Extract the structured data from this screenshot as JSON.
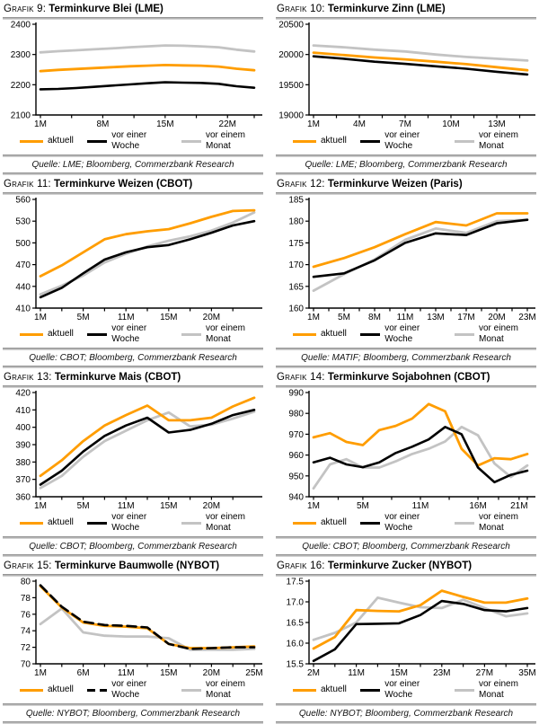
{
  "page": {
    "background": "#FFFFFF"
  },
  "colors": {
    "accent_orange": "#FF9D00",
    "series_black": "#000000",
    "series_gray": "#C3C3C3",
    "rule_gray": "#969696"
  },
  "chart_data": [
    {
      "type": "line",
      "label": "Grafik 9:",
      "title": "Terminkurve Blei (LME)",
      "source": "Quelle: LME; Bloomberg, Commerzbank Research",
      "legend_position": "below",
      "ylim": [
        2100,
        2400
      ],
      "yticks": [
        {
          "v": 2400,
          "label": "2400"
        },
        {
          "v": 2300,
          "label": "2300"
        },
        {
          "v": 2200,
          "label": "2200"
        },
        {
          "v": 2100,
          "label": "2100"
        }
      ],
      "xticks": [
        {
          "label": "1M",
          "i": 0
        },
        {
          "label": "8M",
          "i": 3.5
        },
        {
          "label": "15M",
          "i": 7
        },
        {
          "label": "22M",
          "i": 10.5
        }
      ],
      "series": [
        {
          "name": "aktuell",
          "color": "#FF9D00",
          "values": [
            2245,
            2249,
            2252,
            2255,
            2258,
            2261,
            2263,
            2265,
            2264,
            2263,
            2260,
            2253,
            2248
          ]
        },
        {
          "name": "vor einer Woche",
          "color": "#000000",
          "values": [
            2185,
            2186,
            2189,
            2193,
            2197,
            2201,
            2205,
            2208,
            2207,
            2206,
            2203,
            2195,
            2190
          ]
        },
        {
          "name": "vor einem Monat",
          "color": "#C3C3C3",
          "values": [
            2307,
            2311,
            2314,
            2317,
            2320,
            2324,
            2327,
            2330,
            2329,
            2327,
            2324,
            2316,
            2310
          ]
        }
      ]
    },
    {
      "type": "line",
      "label": "Grafik 10:",
      "title": "Terminkurve Zinn (LME)",
      "source": "Quelle: LME; Bloomberg, Commerzbank Research",
      "legend_position": "below",
      "ylim": [
        19000,
        20500
      ],
      "yticks": [
        {
          "v": 20500,
          "label": "20500"
        },
        {
          "v": 20000,
          "label": "20000"
        },
        {
          "v": 19500,
          "label": "19500"
        },
        {
          "v": 19000,
          "label": "19000"
        }
      ],
      "xticks": [
        {
          "label": "1M",
          "i": 0
        },
        {
          "label": "4M",
          "i": 1.5
        },
        {
          "label": "7M",
          "i": 3
        },
        {
          "label": "10M",
          "i": 4.5
        },
        {
          "label": "13M",
          "i": 6
        }
      ],
      "series": [
        {
          "name": "aktuell",
          "color": "#FF9D00",
          "values": [
            20030,
            19990,
            19950,
            19920,
            19880,
            19840,
            19790,
            19740
          ]
        },
        {
          "name": "vor einer Woche",
          "color": "#000000",
          "values": [
            19970,
            19930,
            19880,
            19845,
            19805,
            19765,
            19715,
            19670
          ]
        },
        {
          "name": "vor einem Monat",
          "color": "#C3C3C3",
          "values": [
            20150,
            20120,
            20080,
            20050,
            20000,
            19960,
            19930,
            19900
          ]
        }
      ]
    },
    {
      "type": "line",
      "label": "Grafik 11:",
      "title": "Terminkurve Weizen (CBOT)",
      "source": "Quelle: CBOT; Bloomberg, Commerzbank Research",
      "legend_position": "below",
      "ylim": [
        410,
        560
      ],
      "yticks": [
        {
          "v": 560,
          "label": "560"
        },
        {
          "v": 530,
          "label": "530"
        },
        {
          "v": 500,
          "label": "500"
        },
        {
          "v": 470,
          "label": "470"
        },
        {
          "v": 440,
          "label": "440"
        },
        {
          "v": 410,
          "label": "410"
        }
      ],
      "xticks": [
        {
          "label": "1M",
          "i": 0
        },
        {
          "label": "5M",
          "i": 2
        },
        {
          "label": "11M",
          "i": 4
        },
        {
          "label": "15M",
          "i": 6
        },
        {
          "label": "20M",
          "i": 8
        }
      ],
      "series": [
        {
          "name": "aktuell",
          "color": "#FF9D00",
          "values": [
            454,
            469,
            487,
            505,
            512,
            516,
            519,
            527,
            536,
            544,
            545
          ]
        },
        {
          "name": "vor einer Woche",
          "color": "#000000",
          "values": [
            425,
            438,
            458,
            477,
            487,
            494,
            497,
            505,
            514,
            524,
            530
          ]
        },
        {
          "name": "vor einem Monat",
          "color": "#C3C3C3",
          "values": [
            429,
            441,
            455,
            473,
            485,
            495,
            503,
            509,
            517,
            528,
            542
          ]
        }
      ]
    },
    {
      "type": "line",
      "label": "Grafik 12:",
      "title": "Terminkurve Weizen (Paris)",
      "source": "Quelle: MATIF; Bloomberg, Commerzbank Research",
      "legend_position": "below",
      "ylim": [
        160,
        185
      ],
      "yticks": [
        {
          "v": 185,
          "label": "185"
        },
        {
          "v": 180,
          "label": "180"
        },
        {
          "v": 175,
          "label": "175"
        },
        {
          "v": 170,
          "label": "170"
        },
        {
          "v": 165,
          "label": "165"
        },
        {
          "v": 160,
          "label": "160"
        }
      ],
      "xticks": [
        {
          "label": "1M",
          "i": 0
        },
        {
          "label": "5M",
          "i": 1
        },
        {
          "label": "8M",
          "i": 2
        },
        {
          "label": "11M",
          "i": 3
        },
        {
          "label": "13M",
          "i": 4
        },
        {
          "label": "17M",
          "i": 5
        },
        {
          "label": "20M",
          "i": 6
        },
        {
          "label": "23M",
          "i": 7
        }
      ],
      "series": [
        {
          "name": "aktuell",
          "color": "#FF9D00",
          "values": [
            169.5,
            171.5,
            174.0,
            177.0,
            179.8,
            179.0,
            181.8,
            181.8
          ]
        },
        {
          "name": "vor einer Woche",
          "color": "#000000",
          "values": [
            167.2,
            168.0,
            171.0,
            175.0,
            177.2,
            176.8,
            179.5,
            180.3
          ]
        },
        {
          "name": "vor einem Monat",
          "color": "#C3C3C3",
          "values": [
            164.0,
            167.8,
            171.2,
            175.7,
            178.3,
            177.3,
            180.0,
            180.3
          ]
        }
      ]
    },
    {
      "type": "line",
      "label": "Grafik 13:",
      "title": "Terminkurve Mais (CBOT)",
      "source": "Quelle: CBOT; Bloomberg, Commerzbank Research",
      "legend_position": "below",
      "ylim": [
        360,
        420
      ],
      "yticks": [
        {
          "v": 420,
          "label": "420"
        },
        {
          "v": 410,
          "label": "410"
        },
        {
          "v": 400,
          "label": "400"
        },
        {
          "v": 390,
          "label": "390"
        },
        {
          "v": 380,
          "label": "380"
        },
        {
          "v": 370,
          "label": "370"
        },
        {
          "v": 360,
          "label": "360"
        }
      ],
      "xticks": [
        {
          "label": "1M",
          "i": 0
        },
        {
          "label": "5M",
          "i": 2
        },
        {
          "label": "11M",
          "i": 4
        },
        {
          "label": "15M",
          "i": 6
        },
        {
          "label": "20M",
          "i": 8
        }
      ],
      "series": [
        {
          "name": "aktuell",
          "color": "#FF9D00",
          "values": [
            372,
            381,
            392,
            401,
            407,
            412.5,
            404,
            404,
            405.5,
            412,
            417
          ]
        },
        {
          "name": "vor einer Woche",
          "color": "#000000",
          "values": [
            367,
            375,
            386,
            395,
            401,
            405.5,
            397,
            398.5,
            402,
            407,
            410
          ]
        },
        {
          "name": "vor einem Monat",
          "color": "#C3C3C3",
          "values": [
            365,
            372,
            383,
            392,
            398,
            404,
            408.5,
            400.5,
            401.5,
            405,
            409
          ]
        }
      ]
    },
    {
      "type": "line",
      "label": "Grafik 14:",
      "title": "Terminkurve Sojabohnen (CBOT)",
      "source": "Quelle: CBOT; Bloomberg, Commerzbank Research",
      "legend_position": "below",
      "ylim": [
        940,
        990
      ],
      "yticks": [
        {
          "v": 990,
          "label": "990"
        },
        {
          "v": 980,
          "label": "980"
        },
        {
          "v": 970,
          "label": "970"
        },
        {
          "v": 960,
          "label": "960"
        },
        {
          "v": 950,
          "label": "950"
        },
        {
          "v": 940,
          "label": "940"
        }
      ],
      "xticks": [
        {
          "label": "1M",
          "i": 0
        },
        {
          "label": "5M",
          "i": 3
        },
        {
          "label": "11M",
          "i": 6.5
        },
        {
          "label": "16M",
          "i": 10
        },
        {
          "label": "21M",
          "i": 12.5
        }
      ],
      "series": [
        {
          "name": "aktuell",
          "color": "#FF9D00",
          "values": [
            968.5,
            970.5,
            966.3,
            964.8,
            972,
            974,
            977.5,
            984.5,
            981,
            963,
            955,
            958.5,
            958,
            960.5
          ]
        },
        {
          "name": "vor einer Woche",
          "color": "#000000",
          "values": [
            956.5,
            958.7,
            955.5,
            954.2,
            956.5,
            961,
            964,
            967.5,
            973.5,
            970,
            954,
            947,
            950.5,
            952.5
          ]
        },
        {
          "name": "vor einem Monat",
          "color": "#C3C3C3",
          "values": [
            944,
            955.5,
            958,
            954,
            954,
            957,
            960.5,
            963,
            966.5,
            973.5,
            969.5,
            956,
            949.5,
            955
          ]
        }
      ]
    },
    {
      "type": "line",
      "label": "Grafik 15:",
      "title": "Terminkurve Baumwolle (NYBOT)",
      "source": "Quelle: NYBOT; Bloomberg, Commerzbank Research",
      "legend_position": "below",
      "ylim": [
        70,
        80
      ],
      "yticks": [
        {
          "v": 80,
          "label": "80"
        },
        {
          "v": 78,
          "label": "78"
        },
        {
          "v": 76,
          "label": "76"
        },
        {
          "v": 74,
          "label": "74"
        },
        {
          "v": 72,
          "label": "72"
        },
        {
          "v": 70,
          "label": "70"
        }
      ],
      "xticks": [
        {
          "label": "1M",
          "i": 0
        },
        {
          "label": "6M",
          "i": 2
        },
        {
          "label": "11M",
          "i": 4
        },
        {
          "label": "15M",
          "i": 6
        },
        {
          "label": "20M",
          "i": 8
        },
        {
          "label": "25M",
          "i": 10
        }
      ],
      "series": [
        {
          "name": "aktuell",
          "color": "#FF9D00",
          "values": [
            79.4,
            76.8,
            75.0,
            74.6,
            74.5,
            74.3,
            72.4,
            71.9,
            71.9,
            72.0,
            72.1
          ]
        },
        {
          "name": "vor einer Woche",
          "color": "#000000",
          "dash": true,
          "values": [
            79.5,
            76.9,
            75.1,
            74.7,
            74.6,
            74.4,
            72.4,
            71.8,
            71.9,
            72.0,
            72.0
          ]
        },
        {
          "name": "vor einem Monat",
          "color": "#C3C3C3",
          "values": [
            74.8,
            76.7,
            73.8,
            73.4,
            73.3,
            73.3,
            73.1,
            71.7,
            71.7,
            71.7,
            71.8
          ]
        }
      ]
    },
    {
      "type": "line",
      "label": "Grafik 16:",
      "title": "Terminkurve Zucker (NYBOT)",
      "source": "Quelle: NYBOT; Bloomberg, Commerzbank Research",
      "legend_position": "below",
      "ylim": [
        15.5,
        17.5
      ],
      "yticks": [
        {
          "v": 17.5,
          "label": "17.5"
        },
        {
          "v": 17.0,
          "label": "17.0"
        },
        {
          "v": 16.5,
          "label": "16.5"
        },
        {
          "v": 16.0,
          "label": "16.0"
        },
        {
          "v": 15.5,
          "label": "15.5"
        }
      ],
      "xticks": [
        {
          "label": "2M",
          "i": 0
        },
        {
          "label": "11M",
          "i": 2
        },
        {
          "label": "15M",
          "i": 4
        },
        {
          "label": "23M",
          "i": 6
        },
        {
          "label": "27M",
          "i": 8
        },
        {
          "label": "35M",
          "i": 10
        }
      ],
      "series": [
        {
          "name": "aktuell",
          "color": "#FF9D00",
          "values": [
            15.87,
            16.15,
            16.8,
            16.78,
            16.77,
            16.92,
            17.27,
            17.12,
            16.98,
            16.98,
            17.08
          ]
        },
        {
          "name": "vor einer Woche",
          "color": "#000000",
          "values": [
            15.57,
            15.85,
            16.46,
            16.47,
            16.48,
            16.68,
            17.02,
            16.95,
            16.8,
            16.77,
            16.85
          ]
        },
        {
          "name": "vor einem Monat",
          "color": "#C3C3C3",
          "values": [
            16.08,
            16.25,
            16.5,
            17.1,
            16.98,
            16.87,
            16.85,
            17.05,
            16.85,
            16.65,
            16.72
          ]
        }
      ]
    }
  ]
}
